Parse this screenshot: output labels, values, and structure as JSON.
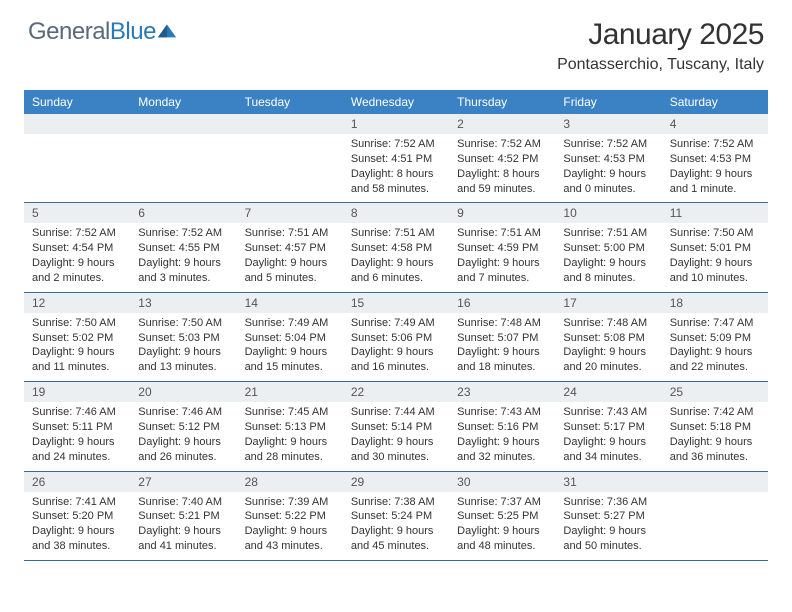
{
  "logo": {
    "textGray": "General",
    "textBlue": "Blue"
  },
  "title": "January 2025",
  "subtitle": "Pontasserchio, Tuscany, Italy",
  "colors": {
    "headerBar": "#3b82c4",
    "headerText": "#ffffff",
    "dayNumBg": "#eceff1",
    "rowBorder": "#3b6a94",
    "bodyText": "#333333",
    "logoGray": "#5a6a78",
    "logoBlue": "#2a7ab8"
  },
  "dayHeaders": [
    "Sunday",
    "Monday",
    "Tuesday",
    "Wednesday",
    "Thursday",
    "Friday",
    "Saturday"
  ],
  "weeks": [
    [
      {
        "empty": true
      },
      {
        "empty": true
      },
      {
        "empty": true
      },
      {
        "num": "1",
        "sunrise": "7:52 AM",
        "sunset": "4:51 PM",
        "daylight": "8 hours and 58 minutes."
      },
      {
        "num": "2",
        "sunrise": "7:52 AM",
        "sunset": "4:52 PM",
        "daylight": "8 hours and 59 minutes."
      },
      {
        "num": "3",
        "sunrise": "7:52 AM",
        "sunset": "4:53 PM",
        "daylight": "9 hours and 0 minutes."
      },
      {
        "num": "4",
        "sunrise": "7:52 AM",
        "sunset": "4:53 PM",
        "daylight": "9 hours and 1 minute."
      }
    ],
    [
      {
        "num": "5",
        "sunrise": "7:52 AM",
        "sunset": "4:54 PM",
        "daylight": "9 hours and 2 minutes."
      },
      {
        "num": "6",
        "sunrise": "7:52 AM",
        "sunset": "4:55 PM",
        "daylight": "9 hours and 3 minutes."
      },
      {
        "num": "7",
        "sunrise": "7:51 AM",
        "sunset": "4:57 PM",
        "daylight": "9 hours and 5 minutes."
      },
      {
        "num": "8",
        "sunrise": "7:51 AM",
        "sunset": "4:58 PM",
        "daylight": "9 hours and 6 minutes."
      },
      {
        "num": "9",
        "sunrise": "7:51 AM",
        "sunset": "4:59 PM",
        "daylight": "9 hours and 7 minutes."
      },
      {
        "num": "10",
        "sunrise": "7:51 AM",
        "sunset": "5:00 PM",
        "daylight": "9 hours and 8 minutes."
      },
      {
        "num": "11",
        "sunrise": "7:50 AM",
        "sunset": "5:01 PM",
        "daylight": "9 hours and 10 minutes."
      }
    ],
    [
      {
        "num": "12",
        "sunrise": "7:50 AM",
        "sunset": "5:02 PM",
        "daylight": "9 hours and 11 minutes."
      },
      {
        "num": "13",
        "sunrise": "7:50 AM",
        "sunset": "5:03 PM",
        "daylight": "9 hours and 13 minutes."
      },
      {
        "num": "14",
        "sunrise": "7:49 AM",
        "sunset": "5:04 PM",
        "daylight": "9 hours and 15 minutes."
      },
      {
        "num": "15",
        "sunrise": "7:49 AM",
        "sunset": "5:06 PM",
        "daylight": "9 hours and 16 minutes."
      },
      {
        "num": "16",
        "sunrise": "7:48 AM",
        "sunset": "5:07 PM",
        "daylight": "9 hours and 18 minutes."
      },
      {
        "num": "17",
        "sunrise": "7:48 AM",
        "sunset": "5:08 PM",
        "daylight": "9 hours and 20 minutes."
      },
      {
        "num": "18",
        "sunrise": "7:47 AM",
        "sunset": "5:09 PM",
        "daylight": "9 hours and 22 minutes."
      }
    ],
    [
      {
        "num": "19",
        "sunrise": "7:46 AM",
        "sunset": "5:11 PM",
        "daylight": "9 hours and 24 minutes."
      },
      {
        "num": "20",
        "sunrise": "7:46 AM",
        "sunset": "5:12 PM",
        "daylight": "9 hours and 26 minutes."
      },
      {
        "num": "21",
        "sunrise": "7:45 AM",
        "sunset": "5:13 PM",
        "daylight": "9 hours and 28 minutes."
      },
      {
        "num": "22",
        "sunrise": "7:44 AM",
        "sunset": "5:14 PM",
        "daylight": "9 hours and 30 minutes."
      },
      {
        "num": "23",
        "sunrise": "7:43 AM",
        "sunset": "5:16 PM",
        "daylight": "9 hours and 32 minutes."
      },
      {
        "num": "24",
        "sunrise": "7:43 AM",
        "sunset": "5:17 PM",
        "daylight": "9 hours and 34 minutes."
      },
      {
        "num": "25",
        "sunrise": "7:42 AM",
        "sunset": "5:18 PM",
        "daylight": "9 hours and 36 minutes."
      }
    ],
    [
      {
        "num": "26",
        "sunrise": "7:41 AM",
        "sunset": "5:20 PM",
        "daylight": "9 hours and 38 minutes."
      },
      {
        "num": "27",
        "sunrise": "7:40 AM",
        "sunset": "5:21 PM",
        "daylight": "9 hours and 41 minutes."
      },
      {
        "num": "28",
        "sunrise": "7:39 AM",
        "sunset": "5:22 PM",
        "daylight": "9 hours and 43 minutes."
      },
      {
        "num": "29",
        "sunrise": "7:38 AM",
        "sunset": "5:24 PM",
        "daylight": "9 hours and 45 minutes."
      },
      {
        "num": "30",
        "sunrise": "7:37 AM",
        "sunset": "5:25 PM",
        "daylight": "9 hours and 48 minutes."
      },
      {
        "num": "31",
        "sunrise": "7:36 AM",
        "sunset": "5:27 PM",
        "daylight": "9 hours and 50 minutes."
      },
      {
        "empty": true
      }
    ]
  ],
  "labels": {
    "sunrise": "Sunrise:",
    "sunset": "Sunset:",
    "daylight": "Daylight:"
  }
}
